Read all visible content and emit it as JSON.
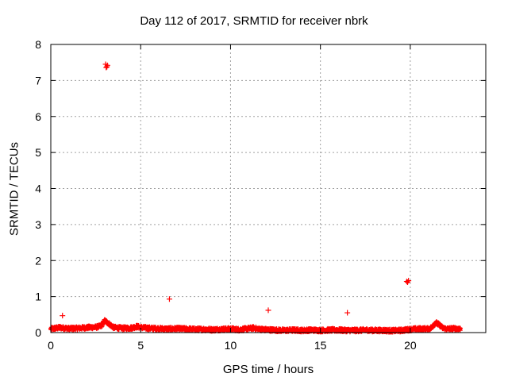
{
  "chart_data": {
    "type": "scatter",
    "title": "Day 112 of 2017, SRMTID for receiver nbrk",
    "xlabel": "GPS time / hours",
    "ylabel": "SRMTID / TECUs",
    "xlim": [
      0,
      24.2
    ],
    "ylim": [
      0,
      8
    ],
    "xticks": [
      0,
      5,
      10,
      15,
      20
    ],
    "yticks": [
      0,
      1,
      2,
      3,
      4,
      5,
      6,
      7,
      8
    ],
    "grid": true,
    "marker": "+",
    "color": "#ff0000",
    "series": [
      {
        "name": "SRMTID",
        "baseline": {
          "x": [
            0.0,
            0.5,
            1.0,
            1.5,
            2.0,
            2.5,
            2.8,
            3.0,
            3.2,
            3.5,
            4.0,
            4.5,
            4.8,
            5.0,
            5.5,
            6.0,
            6.5,
            7.0,
            7.5,
            8.0,
            8.5,
            9.0,
            9.5,
            10.0,
            10.5,
            11.0,
            11.3,
            11.5,
            12.0,
            12.5,
            13.0,
            13.5,
            14.0,
            14.5,
            15.0,
            15.5,
            16.0,
            16.5,
            17.0,
            17.5,
            18.0,
            18.5,
            19.0,
            19.5,
            20.0,
            20.5,
            21.0,
            21.2,
            21.4,
            21.6,
            21.8,
            22.0,
            22.5,
            22.8
          ],
          "y": [
            0.1,
            0.14,
            0.11,
            0.12,
            0.14,
            0.15,
            0.18,
            0.33,
            0.26,
            0.14,
            0.12,
            0.13,
            0.17,
            0.14,
            0.12,
            0.11,
            0.1,
            0.11,
            0.1,
            0.09,
            0.09,
            0.08,
            0.09,
            0.1,
            0.08,
            0.11,
            0.13,
            0.1,
            0.08,
            0.07,
            0.06,
            0.07,
            0.06,
            0.07,
            0.06,
            0.07,
            0.07,
            0.06,
            0.06,
            0.07,
            0.06,
            0.06,
            0.05,
            0.06,
            0.09,
            0.1,
            0.1,
            0.14,
            0.28,
            0.22,
            0.13,
            0.1,
            0.11,
            0.1
          ]
        },
        "outliers": {
          "x": [
            3.05,
            3.12,
            3.08,
            3.15,
            0.65,
            6.6,
            12.1,
            16.5,
            19.8,
            19.9,
            19.85
          ],
          "y": [
            7.45,
            7.38,
            7.36,
            7.42,
            0.47,
            0.93,
            0.62,
            0.55,
            1.42,
            1.44,
            1.4
          ]
        }
      }
    ]
  }
}
